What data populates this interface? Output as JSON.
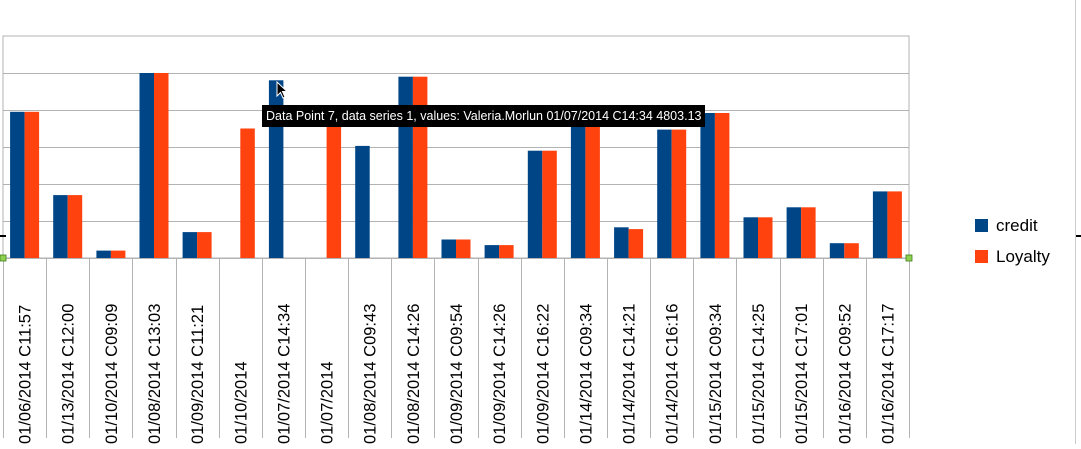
{
  "chart_data": {
    "type": "bar",
    "title": "",
    "xlabel": "",
    "ylabel": "",
    "ylim": [
      0,
      6000
    ],
    "grid": true,
    "legend": "right",
    "categories": [
      "01/06/2014 C11:57",
      "01/13/2014 C12:00",
      "01/10/2014 C09:09",
      "01/08/2014 C13:03",
      "01/09/2014 C11:21",
      "01/10/2014",
      "01/07/2014 C14:34",
      "01/07/2014",
      "01/08/2014 C09:43",
      "01/08/2014 C14:26",
      "01/09/2014 C09:54",
      "01/09/2014 C14:26",
      "01/09/2014 C16:22",
      "01/14/2014 C09:34",
      "01/14/2014 C14:21",
      "01/14/2014 C16:16",
      "01/15/2014 C09:34",
      "01/15/2014 C14:25",
      "01/15/2014 C17:01",
      "01/16/2014 C09:52",
      "01/16/2014 C17:17"
    ],
    "series": [
      {
        "name": "credit",
        "color": "#004586",
        "values": [
          3950,
          1700,
          200,
          5000,
          700,
          null,
          4803.13,
          null,
          3030,
          4900,
          500,
          350,
          2900,
          3920,
          830,
          3470,
          3920,
          1100,
          1370,
          400,
          1800
        ]
      },
      {
        "name": "Loyalty",
        "color": "#ff420e",
        "values": [
          3950,
          1700,
          200,
          5000,
          700,
          3500,
          null,
          3700,
          null,
          4900,
          500,
          350,
          2900,
          3920,
          780,
          3470,
          3920,
          1100,
          1370,
          400,
          1800
        ]
      }
    ],
    "tooltip": "Data Point 7, data series 1, values: Valeria.Morlun 01/07/2014 C14:34 4803.13"
  }
}
